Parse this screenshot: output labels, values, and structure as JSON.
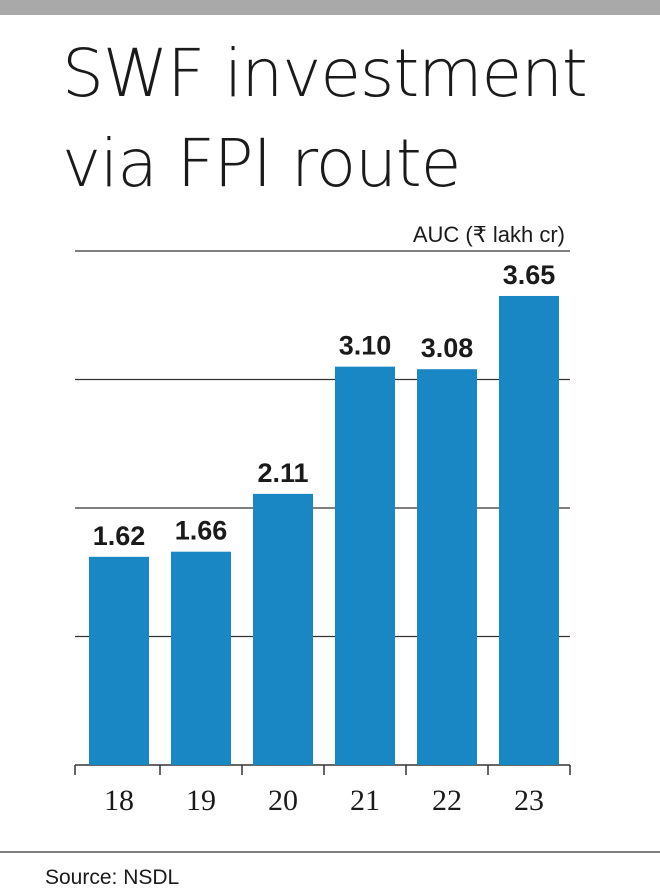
{
  "chart_data": {
    "type": "bar",
    "title": [
      "SWF investment",
      "via FPI route"
    ],
    "axis_label": "AUC (₹ lakh cr)",
    "categories": [
      "18",
      "19",
      "20",
      "21",
      "22",
      "23"
    ],
    "values": [
      1.62,
      1.66,
      2.11,
      3.1,
      3.08,
      3.65
    ],
    "value_labels": [
      "1.62",
      "1.66",
      "2.11",
      "3.10",
      "3.08",
      "3.65"
    ],
    "color": "#1a87c5",
    "ylim": [
      0,
      4
    ],
    "yticks": [
      1,
      2,
      3,
      4
    ],
    "grid": true,
    "source": "Source: NSDL"
  }
}
